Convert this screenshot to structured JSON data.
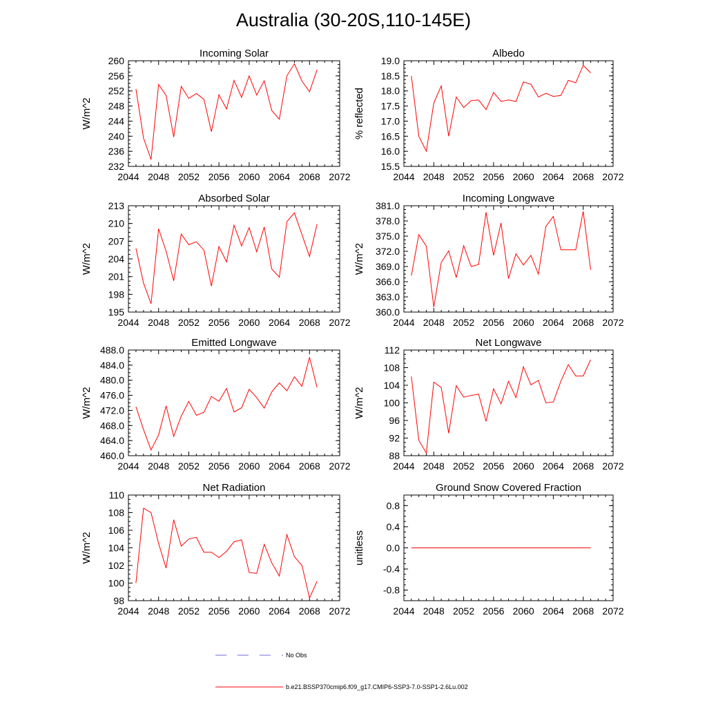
{
  "title": "Australia (30-20S,110-145E)",
  "chart_data": [
    {
      "type": "line",
      "title": "Incoming Solar",
      "ylabel": "W/m^2",
      "xlim": [
        2044,
        2072
      ],
      "ylim": [
        232,
        260
      ],
      "xticks": [
        "2044",
        "2048",
        "2052",
        "2056",
        "2060",
        "2064",
        "2068",
        "2072"
      ],
      "yticks": [
        "232",
        "236",
        "240",
        "244",
        "248",
        "252",
        "256",
        "260"
      ],
      "series": [
        {
          "color": "#ff0000",
          "x": [
            2045,
            2046,
            2047,
            2048,
            2049,
            2050,
            2051,
            2052,
            2053,
            2054,
            2055,
            2056,
            2057,
            2058,
            2059,
            2060,
            2061,
            2062,
            2063,
            2064,
            2065,
            2066,
            2067,
            2068,
            2069
          ],
          "y": [
            252.5,
            239.5,
            233.8,
            253.7,
            250.8,
            239.8,
            253.2,
            250.0,
            251.3,
            249.8,
            241.2,
            251.0,
            247.2,
            254.8,
            250.3,
            256.0,
            250.9,
            254.7,
            246.8,
            244.5,
            256.0,
            259.2,
            254.6,
            251.8,
            257.6
          ]
        }
      ]
    },
    {
      "type": "line",
      "title": "Albedo",
      "ylabel": "% reflected",
      "xlim": [
        2044,
        2072
      ],
      "ylim": [
        15.5,
        19.0
      ],
      "xticks": [
        "2044",
        "2048",
        "2052",
        "2056",
        "2060",
        "2064",
        "2068",
        "2072"
      ],
      "yticks": [
        "15.5",
        "16.0",
        "16.5",
        "17.0",
        "17.5",
        "18.0",
        "18.5",
        "19.0"
      ],
      "series": [
        {
          "color": "#ff0000",
          "x": [
            2045,
            2046,
            2047,
            2048,
            2049,
            2050,
            2051,
            2052,
            2053,
            2054,
            2055,
            2056,
            2057,
            2058,
            2059,
            2060,
            2061,
            2062,
            2063,
            2064,
            2065,
            2066,
            2067,
            2068,
            2069
          ],
          "y": [
            18.5,
            16.5,
            16.0,
            17.6,
            18.17,
            16.5,
            17.8,
            17.45,
            17.68,
            17.7,
            17.38,
            17.95,
            17.65,
            17.7,
            17.65,
            18.3,
            18.22,
            17.8,
            17.92,
            17.82,
            17.85,
            18.35,
            18.27,
            18.85,
            18.6
          ]
        }
      ]
    },
    {
      "type": "line",
      "title": "Absorbed Solar",
      "ylabel": "W/m^2",
      "xlim": [
        2044,
        2072
      ],
      "ylim": [
        195,
        213
      ],
      "xticks": [
        "2044",
        "2048",
        "2052",
        "2056",
        "2060",
        "2064",
        "2068",
        "2072"
      ],
      "yticks": [
        "195",
        "198",
        "201",
        "204",
        "207",
        "210",
        "213"
      ],
      "series": [
        {
          "color": "#ff0000",
          "x": [
            2045,
            2046,
            2047,
            2048,
            2049,
            2050,
            2051,
            2052,
            2053,
            2054,
            2055,
            2056,
            2057,
            2058,
            2059,
            2060,
            2061,
            2062,
            2063,
            2064,
            2065,
            2066,
            2067,
            2068,
            2069
          ],
          "y": [
            205.8,
            199.9,
            196.4,
            209.1,
            205.3,
            200.3,
            208.2,
            206.4,
            206.9,
            205.5,
            199.4,
            206.1,
            203.5,
            209.7,
            206.2,
            209.3,
            205.2,
            209.4,
            202.3,
            200.9,
            210.3,
            211.8,
            208.1,
            204.4,
            209.9
          ]
        }
      ]
    },
    {
      "type": "line",
      "title": "Incoming Longwave",
      "ylabel": "W/m^2",
      "xlim": [
        2044,
        2072
      ],
      "ylim": [
        360.0,
        381.0
      ],
      "xticks": [
        "2044",
        "2048",
        "2052",
        "2056",
        "2060",
        "2064",
        "2068",
        "2072"
      ],
      "yticks": [
        "360.0",
        "363.0",
        "366.0",
        "369.0",
        "372.0",
        "375.0",
        "378.0",
        "381.0"
      ],
      "series": [
        {
          "color": "#ff0000",
          "x": [
            2045,
            2046,
            2047,
            2048,
            2049,
            2050,
            2051,
            2052,
            2053,
            2054,
            2055,
            2056,
            2057,
            2058,
            2059,
            2060,
            2061,
            2062,
            2063,
            2064,
            2065,
            2066,
            2067,
            2068,
            2069
          ],
          "y": [
            367.2,
            375.3,
            373.0,
            361.0,
            369.8,
            372.1,
            366.8,
            373.1,
            369.0,
            369.4,
            379.7,
            371.2,
            377.6,
            366.6,
            371.5,
            369.3,
            371.2,
            367.5,
            376.9,
            378.9,
            372.3,
            372.3,
            372.3,
            379.9,
            368.3
          ]
        }
      ]
    },
    {
      "type": "line",
      "title": "Emitted Longwave",
      "ylabel": "W/m^2",
      "xlim": [
        2044,
        2072
      ],
      "ylim": [
        460.0,
        488.0
      ],
      "xticks": [
        "2044",
        "2048",
        "2052",
        "2056",
        "2060",
        "2064",
        "2068",
        "2072"
      ],
      "yticks": [
        "460.0",
        "464.0",
        "468.0",
        "472.0",
        "476.0",
        "480.0",
        "484.0",
        "488.0"
      ],
      "series": [
        {
          "color": "#ff0000",
          "x": [
            2045,
            2046,
            2047,
            2048,
            2049,
            2050,
            2051,
            2052,
            2053,
            2054,
            2055,
            2056,
            2057,
            2058,
            2059,
            2060,
            2061,
            2062,
            2063,
            2064,
            2065,
            2066,
            2067,
            2068,
            2069
          ],
          "y": [
            473.0,
            466.9,
            461.5,
            465.5,
            473.2,
            465.1,
            470.5,
            474.4,
            470.7,
            471.5,
            475.7,
            474.4,
            477.8,
            471.6,
            472.7,
            477.6,
            475.4,
            472.6,
            476.9,
            479.3,
            477.2,
            480.9,
            478.4,
            486.1,
            478.1
          ]
        }
      ]
    },
    {
      "type": "line",
      "title": "Net Longwave",
      "ylabel": "W/m^2",
      "xlim": [
        2044,
        2072
      ],
      "ylim": [
        88,
        112
      ],
      "xticks": [
        "2044",
        "2048",
        "2052",
        "2056",
        "2060",
        "2064",
        "2068",
        "2072"
      ],
      "yticks": [
        "88",
        "92",
        "96",
        "100",
        "104",
        "108",
        "112"
      ],
      "series": [
        {
          "color": "#ff0000",
          "x": [
            2045,
            2046,
            2047,
            2048,
            2049,
            2050,
            2051,
            2052,
            2053,
            2054,
            2055,
            2056,
            2057,
            2058,
            2059,
            2060,
            2061,
            2062,
            2063,
            2064,
            2065,
            2066,
            2067,
            2068,
            2069
          ],
          "y": [
            106.0,
            91.5,
            88.6,
            104.7,
            103.5,
            93.1,
            103.9,
            101.3,
            101.7,
            102.0,
            95.8,
            103.2,
            99.8,
            104.9,
            101.2,
            108.2,
            104.1,
            105.1,
            100.0,
            100.2,
            104.9,
            108.7,
            106.1,
            106.1,
            109.8
          ]
        }
      ]
    },
    {
      "type": "line",
      "title": "Net Radiation",
      "ylabel": "W/m^2",
      "xlim": [
        2044,
        2072
      ],
      "ylim": [
        98,
        110
      ],
      "xticks": [
        "2044",
        "2048",
        "2052",
        "2056",
        "2060",
        "2064",
        "2068",
        "2072"
      ],
      "yticks": [
        "98",
        "100",
        "102",
        "104",
        "106",
        "108",
        "110"
      ],
      "series": [
        {
          "color": "#ff0000",
          "x": [
            2045,
            2046,
            2047,
            2048,
            2049,
            2050,
            2051,
            2052,
            2053,
            2054,
            2055,
            2056,
            2057,
            2058,
            2059,
            2060,
            2061,
            2062,
            2063,
            2064,
            2065,
            2066,
            2067,
            2068,
            2069
          ],
          "y": [
            100.0,
            108.5,
            108.0,
            104.5,
            101.7,
            107.2,
            104.2,
            105.0,
            105.2,
            103.5,
            103.5,
            102.9,
            103.6,
            104.7,
            104.9,
            101.2,
            101.1,
            104.4,
            102.3,
            100.8,
            105.5,
            103.0,
            102.0,
            98.3,
            100.2
          ]
        }
      ]
    },
    {
      "type": "line",
      "title": "Ground Snow Covered Fraction",
      "ylabel": "unitless",
      "xlim": [
        2044,
        2072
      ],
      "ylim": [
        -1.0,
        1.0
      ],
      "xticks": [
        "2044",
        "2048",
        "2052",
        "2056",
        "2060",
        "2064",
        "2068",
        "2072"
      ],
      "yticks": [
        "-0.8",
        "-0.4",
        "0.0",
        "0.4",
        "0.8"
      ],
      "ytick_values": [
        -0.8,
        -0.4,
        0.0,
        0.4,
        0.8
      ],
      "series": [
        {
          "color": "#ff0000",
          "x": [
            2045,
            2069
          ],
          "y": [
            0.0,
            0.0
          ]
        }
      ]
    }
  ],
  "legend": {
    "entries": [
      {
        "label": "No Obs",
        "color": "#6b6bd6",
        "style": "dashed"
      },
      {
        "label": "b.e21.BSSP370cmip6.f09_g17.CMIP6-SSP3-7.0-SSP1-2.6Lu.002",
        "color": "#ff0000",
        "style": "solid"
      }
    ]
  }
}
